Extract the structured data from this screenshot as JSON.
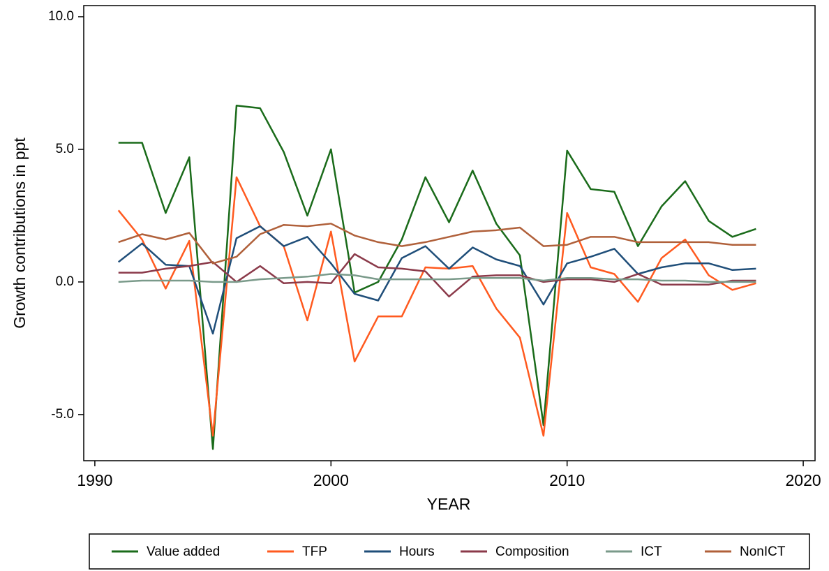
{
  "chart_data": {
    "type": "line",
    "x": [
      1991,
      1992,
      1993,
      1994,
      1995,
      1996,
      1997,
      1998,
      1999,
      2000,
      2001,
      2002,
      2003,
      2004,
      2005,
      2006,
      2007,
      2008,
      2009,
      2010,
      2011,
      2012,
      2013,
      2014,
      2015,
      2016,
      2017,
      2018
    ],
    "series": [
      {
        "name": "Value added",
        "color": "#1a6b1a",
        "values": [
          5.25,
          5.25,
          2.6,
          4.7,
          -6.3,
          6.65,
          6.55,
          4.9,
          2.5,
          5.0,
          -0.4,
          0.0,
          1.6,
          3.95,
          2.25,
          4.2,
          2.2,
          1.0,
          -5.4,
          4.95,
          3.5,
          3.4,
          1.35,
          2.85,
          3.8,
          2.3,
          1.7,
          2.0
        ]
      },
      {
        "name": "TFP",
        "color": "#ff5a1f",
        "values": [
          2.7,
          1.6,
          -0.25,
          1.55,
          -5.8,
          3.95,
          2.1,
          1.35,
          -1.45,
          1.9,
          -3.0,
          -1.3,
          -1.3,
          0.55,
          0.5,
          0.6,
          -1.0,
          -2.1,
          -5.8,
          2.6,
          0.55,
          0.3,
          -0.75,
          0.9,
          1.6,
          0.25,
          -0.3,
          -0.05
        ]
      },
      {
        "name": "Hours",
        "color": "#1f4e79",
        "values": [
          0.75,
          1.45,
          0.65,
          0.6,
          -1.95,
          1.65,
          2.1,
          1.35,
          1.7,
          0.7,
          -0.45,
          -0.7,
          0.9,
          1.35,
          0.5,
          1.3,
          0.85,
          0.6,
          -0.85,
          0.7,
          0.95,
          1.25,
          0.3,
          0.55,
          0.7,
          0.7,
          0.45,
          0.5
        ]
      },
      {
        "name": "Composition",
        "color": "#8b3a4a",
        "values": [
          0.35,
          0.35,
          0.5,
          0.6,
          0.75,
          0.0,
          0.6,
          -0.05,
          0.0,
          -0.05,
          1.05,
          0.55,
          0.5,
          0.4,
          -0.55,
          0.2,
          0.25,
          0.25,
          0.0,
          0.1,
          0.1,
          0.0,
          0.3,
          -0.1,
          -0.1,
          -0.1,
          0.05,
          0.05
        ]
      },
      {
        "name": "ICT",
        "color": "#7a9a8a",
        "values": [
          0.0,
          0.05,
          0.05,
          0.05,
          0.0,
          0.0,
          0.1,
          0.15,
          0.2,
          0.3,
          0.25,
          0.1,
          0.1,
          0.1,
          0.1,
          0.15,
          0.15,
          0.15,
          0.05,
          0.15,
          0.15,
          0.1,
          0.1,
          0.05,
          0.05,
          0.0,
          0.0,
          0.0
        ]
      },
      {
        "name": "NonICT",
        "color": "#b0603a",
        "values": [
          1.5,
          1.8,
          1.6,
          1.85,
          0.7,
          0.95,
          1.8,
          2.15,
          2.1,
          2.2,
          1.75,
          1.5,
          1.35,
          1.5,
          1.7,
          1.9,
          1.95,
          2.05,
          1.35,
          1.4,
          1.7,
          1.7,
          1.5,
          1.5,
          1.5,
          1.5,
          1.4,
          1.4
        ]
      }
    ],
    "xlabel": "YEAR",
    "ylabel": "Growth contributions in ppt",
    "xlim": [
      1989.53,
      2020.5
    ],
    "xticks": [
      1990,
      2000,
      2010,
      2020
    ],
    "ylim": [
      -6.74,
      10.42
    ],
    "yticks": [
      {
        "value": -5,
        "label": "-5.0"
      },
      {
        "value": 0,
        "label": "0.0"
      },
      {
        "value": 5,
        "label": "5.0"
      },
      {
        "value": 10,
        "label": "10.0"
      }
    ],
    "legend": "bottom"
  }
}
